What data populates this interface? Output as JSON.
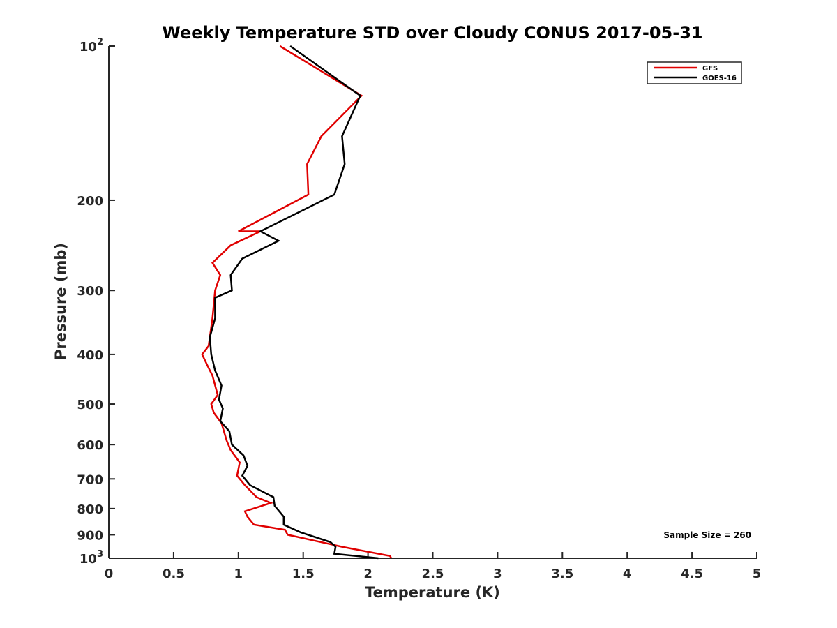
{
  "chart_data": {
    "type": "line",
    "title": "Weekly Temperature STD over Cloudy CONUS 2017-05-31",
    "xlabel": "Temperature (K)",
    "ylabel": "Pressure (mb)",
    "xlim": [
      0,
      5
    ],
    "ylim": [
      100,
      1000
    ],
    "yscale": "log",
    "yreversed": true,
    "grid": false,
    "legend_position": "top-right",
    "x_ticks": [
      "0",
      "0.5",
      "1",
      "1.5",
      "2",
      "2.5",
      "3",
      "3.5",
      "4",
      "4.5",
      "5"
    ],
    "y_ticks": [
      {
        "value": 100,
        "label": "10",
        "exp": "2"
      },
      {
        "value": 200,
        "label": "200"
      },
      {
        "value": 300,
        "label": "300"
      },
      {
        "value": 400,
        "label": "400"
      },
      {
        "value": 500,
        "label": "500"
      },
      {
        "value": 600,
        "label": "600"
      },
      {
        "value": 700,
        "label": "700"
      },
      {
        "value": 800,
        "label": "800"
      },
      {
        "value": 900,
        "label": "900"
      },
      {
        "value": 1000,
        "label": "10",
        "exp": "3"
      }
    ],
    "series": [
      {
        "name": "GFS",
        "color": "#e00000",
        "points": [
          [
            1.32,
            100
          ],
          [
            1.95,
            125
          ],
          [
            1.64,
            150
          ],
          [
            1.53,
            170
          ],
          [
            1.54,
            195
          ],
          [
            1.0,
            230
          ],
          [
            1.17,
            230
          ],
          [
            0.94,
            245
          ],
          [
            0.8,
            265
          ],
          [
            0.86,
            280
          ],
          [
            0.82,
            300
          ],
          [
            0.8,
            340
          ],
          [
            0.77,
            385
          ],
          [
            0.72,
            400
          ],
          [
            0.76,
            420
          ],
          [
            0.8,
            440
          ],
          [
            0.84,
            480
          ],
          [
            0.79,
            500
          ],
          [
            0.81,
            520
          ],
          [
            0.87,
            545
          ],
          [
            0.91,
            590
          ],
          [
            0.94,
            615
          ],
          [
            1.01,
            650
          ],
          [
            0.99,
            690
          ],
          [
            1.05,
            720
          ],
          [
            1.14,
            760
          ],
          [
            1.25,
            780
          ],
          [
            1.05,
            810
          ],
          [
            1.07,
            830
          ],
          [
            1.12,
            860
          ],
          [
            1.36,
            880
          ],
          [
            1.38,
            900
          ],
          [
            1.72,
            940
          ],
          [
            1.8,
            950
          ],
          [
            2.17,
            990
          ],
          [
            2.18,
            1000
          ]
        ]
      },
      {
        "name": "GOES-16",
        "color": "#000000",
        "points": [
          [
            1.4,
            100
          ],
          [
            1.94,
            125
          ],
          [
            1.8,
            150
          ],
          [
            1.82,
            170
          ],
          [
            1.74,
            195
          ],
          [
            1.17,
            230
          ],
          [
            1.31,
            240
          ],
          [
            1.03,
            260
          ],
          [
            0.94,
            280
          ],
          [
            0.95,
            300
          ],
          [
            0.82,
            310
          ],
          [
            0.82,
            340
          ],
          [
            0.78,
            370
          ],
          [
            0.79,
            400
          ],
          [
            0.82,
            430
          ],
          [
            0.87,
            460
          ],
          [
            0.85,
            490
          ],
          [
            0.88,
            510
          ],
          [
            0.86,
            540
          ],
          [
            0.93,
            565
          ],
          [
            0.95,
            600
          ],
          [
            1.04,
            630
          ],
          [
            1.07,
            660
          ],
          [
            1.03,
            690
          ],
          [
            1.09,
            720
          ],
          [
            1.27,
            760
          ],
          [
            1.28,
            790
          ],
          [
            1.35,
            830
          ],
          [
            1.35,
            860
          ],
          [
            1.48,
            890
          ],
          [
            1.71,
            930
          ],
          [
            1.75,
            950
          ],
          [
            1.74,
            980
          ],
          [
            2.08,
            1000
          ]
        ]
      }
    ],
    "annotations": [
      "Sample Size = 260"
    ]
  }
}
